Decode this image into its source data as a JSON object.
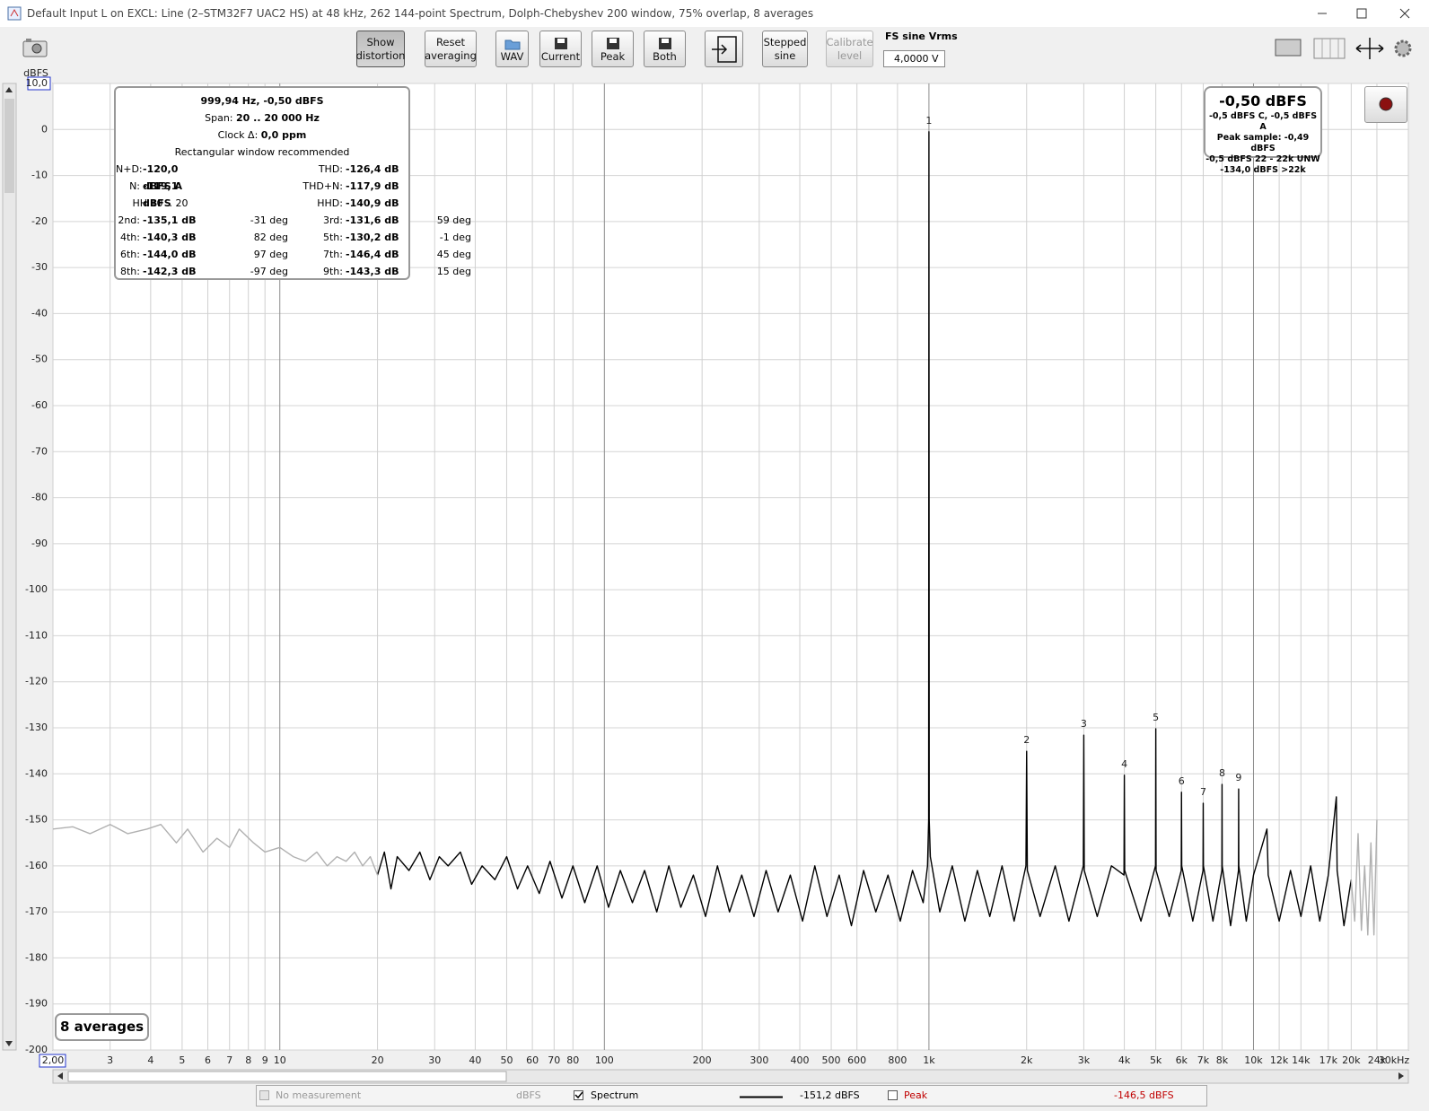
{
  "window_title": "Default Input L on EXCL: Line (2–STM32F7 UAC2 HS) at 48 kHz, 262 144-point Spectrum, Dolph-Chebyshev 200 window, 75% overlap, 8 averages",
  "toolbar": {
    "buttons": [
      [
        "Show",
        "distortion"
      ],
      [
        "Reset",
        "averaging"
      ],
      [
        "WAV"
      ],
      [
        "Current"
      ],
      [
        "Peak"
      ],
      [
        "Both"
      ],
      [
        "Stepped",
        "sine"
      ],
      [
        "Calibrate",
        "level"
      ]
    ],
    "fs_label": "FS sine Vrms",
    "fs_value": "4,0000 V"
  },
  "chart_data": {
    "type": "line",
    "y_label": "dBFS",
    "log_x": true,
    "grid": true,
    "xlim": [
      2,
      30000
    ],
    "ylim": [
      -200,
      10
    ],
    "xticks": [
      {
        "value": 2,
        "label": "2,00"
      },
      3,
      4,
      5,
      6,
      7,
      8,
      9,
      10,
      20,
      30,
      40,
      50,
      60,
      70,
      80,
      100,
      200,
      300,
      400,
      500,
      600,
      800,
      {
        "value": 1000,
        "label": "1k"
      },
      {
        "value": 2000,
        "label": "2k"
      },
      {
        "value": 3000,
        "label": "3k"
      },
      {
        "value": 4000,
        "label": "4k"
      },
      {
        "value": 5000,
        "label": "5k"
      },
      {
        "value": 6000,
        "label": "6k"
      },
      {
        "value": 7000,
        "label": "7k"
      },
      {
        "value": 8000,
        "label": "8k"
      },
      {
        "value": 10000,
        "label": "10k"
      },
      {
        "value": 12000,
        "label": "12k"
      },
      {
        "value": 14000,
        "label": "14k"
      },
      {
        "value": 17000,
        "label": "17k"
      },
      {
        "value": 20000,
        "label": "20k"
      },
      {
        "value": 24000,
        "label": "24k"
      },
      {
        "value": 30000,
        "label": "30kHz"
      }
    ],
    "yticks": [
      {
        "value": 10,
        "label": "10,0"
      },
      0,
      -10,
      -20,
      -30,
      -40,
      -50,
      -60,
      -70,
      -80,
      -90,
      -100,
      -110,
      -120,
      -130,
      -140,
      -150,
      -160,
      -170,
      -180,
      -190,
      -200
    ],
    "series": [
      {
        "name": "Spectrum",
        "color": "#000000",
        "x": [
          20,
          21,
          22,
          23,
          25,
          27,
          29,
          31,
          33,
          36,
          39,
          42,
          46,
          50,
          54,
          58,
          63,
          68,
          74,
          80,
          87,
          95,
          103,
          112,
          122,
          133,
          145,
          158,
          172,
          188,
          205,
          223,
          243,
          265,
          289,
          315,
          343,
          374,
          408,
          445,
          485,
          529,
          577,
          629,
          686,
          748,
          816,
          890,
          960,
          990,
          998,
          1000,
          1002,
          1010,
          1080,
          1180,
          1290,
          1410,
          1540,
          1680,
          1830,
          1990,
          2000,
          2010,
          2200,
          2450,
          2700,
          2990,
          3000,
          3010,
          3300,
          3650,
          3990,
          4000,
          4010,
          4500,
          4990,
          5000,
          5010,
          5500,
          5990,
          6000,
          6010,
          6500,
          6990,
          7000,
          7010,
          7500,
          7990,
          8000,
          8010,
          8500,
          8990,
          9000,
          9010,
          9500,
          10000,
          11000,
          11100,
          12000,
          13000,
          14000,
          15000,
          16000,
          17000,
          18000,
          18100,
          19000,
          20000
        ],
        "values": [
          -162,
          -157,
          -165,
          -158,
          -161,
          -157,
          -163,
          -158,
          -160,
          -157,
          -164,
          -160,
          -163,
          -158,
          -165,
          -160,
          -166,
          -159,
          -167,
          -160,
          -168,
          -160,
          -169,
          -161,
          -168,
          -161,
          -170,
          -160,
          -169,
          -162,
          -171,
          -160,
          -170,
          -162,
          -171,
          -161,
          -170,
          -162,
          -172,
          -160,
          -171,
          -162,
          -173,
          -161,
          -170,
          -162,
          -172,
          -161,
          -168,
          -160,
          -150,
          -0.5,
          -150,
          -158,
          -170,
          -160,
          -172,
          -161,
          -171,
          -160,
          -172,
          -160,
          -135.1,
          -161,
          -171,
          -160,
          -172,
          -160,
          -131.6,
          -161,
          -171,
          -160,
          -162,
          -140.3,
          -161,
          -172,
          -160,
          -130.2,
          -161,
          -171,
          -161,
          -144,
          -160,
          -172,
          -161,
          -146.4,
          -160,
          -172,
          -161,
          -142.3,
          -160,
          -173,
          -161,
          -143.3,
          -160,
          -172,
          -162,
          -152,
          -162,
          -172,
          -161,
          -171,
          -160,
          -172,
          -162,
          -145,
          -161,
          -173,
          -163
        ]
      },
      {
        "color": "#b0b0b0",
        "x": [
          2,
          2.3,
          2.6,
          3,
          3.4,
          3.9,
          4.3,
          4.8,
          5.2,
          5.8,
          6.4,
          7,
          7.5,
          8.3,
          9,
          10,
          11,
          12,
          13,
          14,
          15,
          16,
          17,
          18,
          19,
          20
        ],
        "values": [
          -152,
          -151.5,
          -153,
          -151,
          -153,
          -152,
          -151,
          -155,
          -152,
          -157,
          -154,
          -156,
          -152,
          -155,
          -157,
          -156,
          -158,
          -159,
          -157,
          -160,
          -158,
          -159,
          -157,
          -160,
          -158,
          -162
        ]
      },
      {
        "color": "#b0b0b0",
        "x": [
          20000,
          20500,
          21000,
          21500,
          22000,
          22500,
          23000,
          23500,
          24000
        ],
        "values": [
          -163,
          -172,
          -153,
          -174,
          -160,
          -175,
          -155,
          -175,
          -150
        ]
      }
    ],
    "harmonics": {
      "labels": [
        "1",
        "2",
        "3",
        "4",
        "5",
        "6",
        "7",
        "8",
        "9"
      ],
      "x": [
        1000,
        2000,
        3000,
        4000,
        5000,
        6000,
        7000,
        8000,
        9000
      ],
      "values": [
        -0.5,
        -135.1,
        -131.6,
        -140.3,
        -130.2,
        -144,
        -146.4,
        -142.3,
        -143.3
      ]
    }
  },
  "distortion_panel": {
    "title": "999,94 Hz, -0,50 dBFS",
    "span_label": "Span:",
    "span": "20 .. 20 000 Hz",
    "clock_label": "Clock Δ:",
    "clock": "0,0 ppm",
    "note": "Rectangular window recommended",
    "rows": [
      [
        {
          "label": "N+D:",
          "value": "-120,0 dBFS A"
        },
        {
          "label": "THD:",
          "value": "-126,4 dB"
        }
      ],
      [
        {
          "label": "N:",
          "value": "-119,1 dBFS"
        },
        {
          "label": "THD+N:",
          "value": "-117,9 dB"
        }
      ],
      [
        {
          "label": "HH 10 .. 20"
        },
        {
          "label": "HHD:",
          "value": "-140,9 dB"
        }
      ],
      [
        {
          "label": "2nd:",
          "value": "-135,1 dB",
          "phase": "-31 deg"
        },
        {
          "label": "3rd:",
          "value": "-131,6 dB",
          "phase": "59 deg"
        }
      ],
      [
        {
          "label": "4th:",
          "value": "-140,3 dB",
          "phase": "82 deg"
        },
        {
          "label": "5th:",
          "value": "-130,2 dB",
          "phase": "-1 deg"
        }
      ],
      [
        {
          "label": "6th:",
          "value": "-144,0 dB",
          "phase": "97 deg"
        },
        {
          "label": "7th:",
          "value": "-146,4 dB",
          "phase": "45 deg"
        }
      ],
      [
        {
          "label": "8th:",
          "value": "-142,3 dB",
          "phase": "-97 deg"
        },
        {
          "label": "9th:",
          "value": "-143,3 dB",
          "phase": "15 deg"
        }
      ]
    ]
  },
  "level_panel": {
    "main": "-0,50 dBFS",
    "lines": [
      "-0,5 dBFS C, -0,5 dBFS A",
      "Peak sample: -0,49 dBFS",
      "-0,5 dBFS 22 - 22k UNW",
      "-134,0 dBFS >22k"
    ]
  },
  "averages_badge": "8 averages",
  "legend_bar": {
    "no_measurement": "No measurement",
    "no_measurement_unit": "dBFS",
    "spectrum_reading": "-151,2 dBFS",
    "peak_name": "Peak",
    "peak_reading": "-146,5 dBFS"
  }
}
